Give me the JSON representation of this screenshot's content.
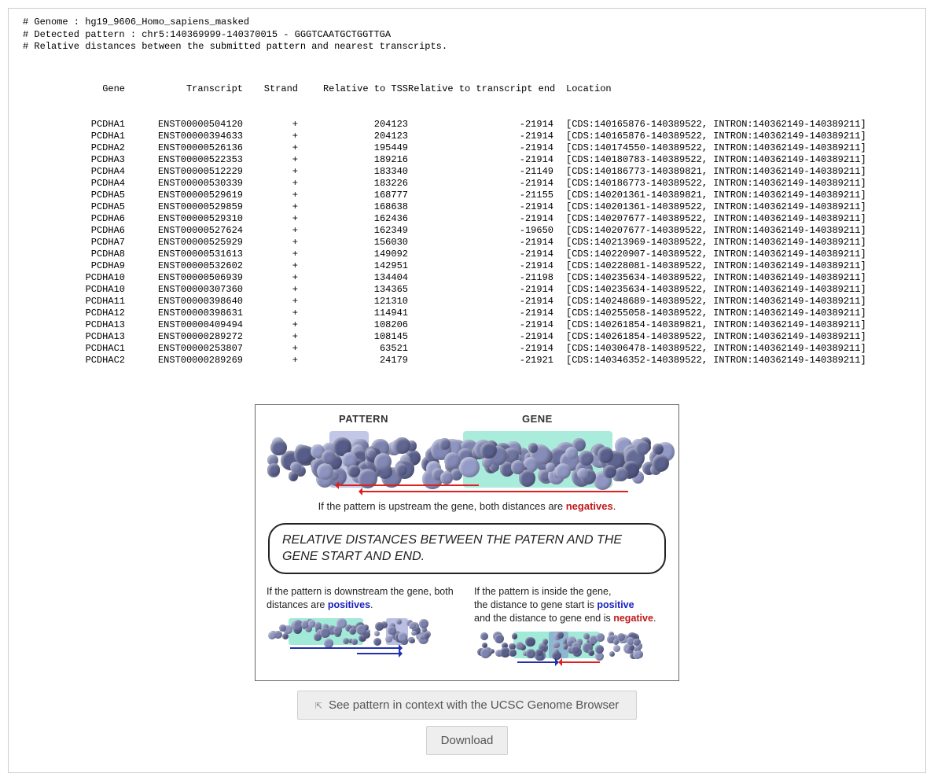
{
  "header": {
    "line1": "# Genome : hg19_9606_Homo_sapiens_masked",
    "line2": "# Detected pattern : chr5:140369999-140370015 - GGGTCAATGCTGGTTGA",
    "line3": "# Relative distances between the submitted pattern and nearest transcripts."
  },
  "columns": {
    "gene": "Gene",
    "transcript": "Transcript",
    "strand": "Strand",
    "tss": "Relative to TSS",
    "end": "Relative to transcript end",
    "location": "Location"
  },
  "rows": [
    {
      "gene": "PCDHA1",
      "tx": "ENST00000504120",
      "strand": "+",
      "tss": "204123",
      "end": "-21914",
      "loc": "[CDS:140165876-140389522, INTRON:140362149-140389211]"
    },
    {
      "gene": "PCDHA1",
      "tx": "ENST00000394633",
      "strand": "+",
      "tss": "204123",
      "end": "-21914",
      "loc": "[CDS:140165876-140389522, INTRON:140362149-140389211]"
    },
    {
      "gene": "PCDHA2",
      "tx": "ENST00000526136",
      "strand": "+",
      "tss": "195449",
      "end": "-21914",
      "loc": "[CDS:140174550-140389522, INTRON:140362149-140389211]"
    },
    {
      "gene": "PCDHA3",
      "tx": "ENST00000522353",
      "strand": "+",
      "tss": "189216",
      "end": "-21914",
      "loc": "[CDS:140180783-140389522, INTRON:140362149-140389211]"
    },
    {
      "gene": "PCDHA4",
      "tx": "ENST00000512229",
      "strand": "+",
      "tss": "183340",
      "end": "-21149",
      "loc": "[CDS:140186773-140389821, INTRON:140362149-140389211]"
    },
    {
      "gene": "PCDHA4",
      "tx": "ENST00000530339",
      "strand": "+",
      "tss": "183226",
      "end": "-21914",
      "loc": "[CDS:140186773-140389522, INTRON:140362149-140389211]"
    },
    {
      "gene": "PCDHA5",
      "tx": "ENST00000529619",
      "strand": "+",
      "tss": "168777",
      "end": "-21155",
      "loc": "[CDS:140201361-140389821, INTRON:140362149-140389211]"
    },
    {
      "gene": "PCDHA5",
      "tx": "ENST00000529859",
      "strand": "+",
      "tss": "168638",
      "end": "-21914",
      "loc": "[CDS:140201361-140389522, INTRON:140362149-140389211]"
    },
    {
      "gene": "PCDHA6",
      "tx": "ENST00000529310",
      "strand": "+",
      "tss": "162436",
      "end": "-21914",
      "loc": "[CDS:140207677-140389522, INTRON:140362149-140389211]"
    },
    {
      "gene": "PCDHA6",
      "tx": "ENST00000527624",
      "strand": "+",
      "tss": "162349",
      "end": "-19650",
      "loc": "[CDS:140207677-140389522, INTRON:140362149-140389211]"
    },
    {
      "gene": "PCDHA7",
      "tx": "ENST00000525929",
      "strand": "+",
      "tss": "156030",
      "end": "-21914",
      "loc": "[CDS:140213969-140389522, INTRON:140362149-140389211]"
    },
    {
      "gene": "PCDHA8",
      "tx": "ENST00000531613",
      "strand": "+",
      "tss": "149092",
      "end": "-21914",
      "loc": "[CDS:140220907-140389522, INTRON:140362149-140389211]"
    },
    {
      "gene": "PCDHA9",
      "tx": "ENST00000532602",
      "strand": "+",
      "tss": "142951",
      "end": "-21914",
      "loc": "[CDS:140228081-140389522, INTRON:140362149-140389211]"
    },
    {
      "gene": "PCDHA10",
      "tx": "ENST00000506939",
      "strand": "+",
      "tss": "134404",
      "end": "-21198",
      "loc": "[CDS:140235634-140389522, INTRON:140362149-140389211]"
    },
    {
      "gene": "PCDHA10",
      "tx": "ENST00000307360",
      "strand": "+",
      "tss": "134365",
      "end": "-21914",
      "loc": "[CDS:140235634-140389522, INTRON:140362149-140389211]"
    },
    {
      "gene": "PCDHA11",
      "tx": "ENST00000398640",
      "strand": "+",
      "tss": "121310",
      "end": "-21914",
      "loc": "[CDS:140248689-140389522, INTRON:140362149-140389211]"
    },
    {
      "gene": "PCDHA12",
      "tx": "ENST00000398631",
      "strand": "+",
      "tss": "114941",
      "end": "-21914",
      "loc": "[CDS:140255058-140389522, INTRON:140362149-140389211]"
    },
    {
      "gene": "PCDHA13",
      "tx": "ENST00000409494",
      "strand": "+",
      "tss": "108206",
      "end": "-21914",
      "loc": "[CDS:140261854-140389821, INTRON:140362149-140389211]"
    },
    {
      "gene": "PCDHA13",
      "tx": "ENST00000289272",
      "strand": "+",
      "tss": "108145",
      "end": "-21914",
      "loc": "[CDS:140261854-140389522, INTRON:140362149-140389211]"
    },
    {
      "gene": "PCDHAC1",
      "tx": "ENST00000253807",
      "strand": "+",
      "tss": "63521",
      "end": "-21914",
      "loc": "[CDS:140306478-140389522, INTRON:140362149-140389211]"
    },
    {
      "gene": "PCDHAC2",
      "tx": "ENST00000289269",
      "strand": "+",
      "tss": "24179",
      "end": "-21921",
      "loc": "[CDS:140346352-140389522, INTRON:140362149-140389211]"
    }
  ],
  "diagram": {
    "pattern_label": "PATTERN",
    "gene_label": "GENE",
    "caption_upstream_prefix": "If the pattern is upstream the gene, both distances are ",
    "caption_upstream_word": "negatives",
    "caption_upstream_suffix": ".",
    "main_box": "RELATIVE DISTANCES BETWEEN THE PATERN AND THE GENE START AND END.",
    "left_text_prefix": "If the pattern is downstream the gene, both distances are ",
    "left_text_word": "positives",
    "left_text_suffix": ".",
    "right_text_l1": "If the pattern is inside the gene,",
    "right_text_l2a": "the distance to gene start is ",
    "right_text_l2b": "positive",
    "right_text_l3a": "and the distance to gene end is ",
    "right_text_l3b": "negative",
    "right_text_l3c": ".",
    "colors": {
      "bead": "#7a85ad",
      "pattern_highlight": "rgba(120,130,200,0.45)",
      "gene_highlight": "rgba(100,220,190,0.55)",
      "red": "#e02020",
      "blue": "#2030b0"
    }
  },
  "buttons": {
    "ucsc": "See pattern in context with the UCSC Genome Browser",
    "download": "Download"
  }
}
